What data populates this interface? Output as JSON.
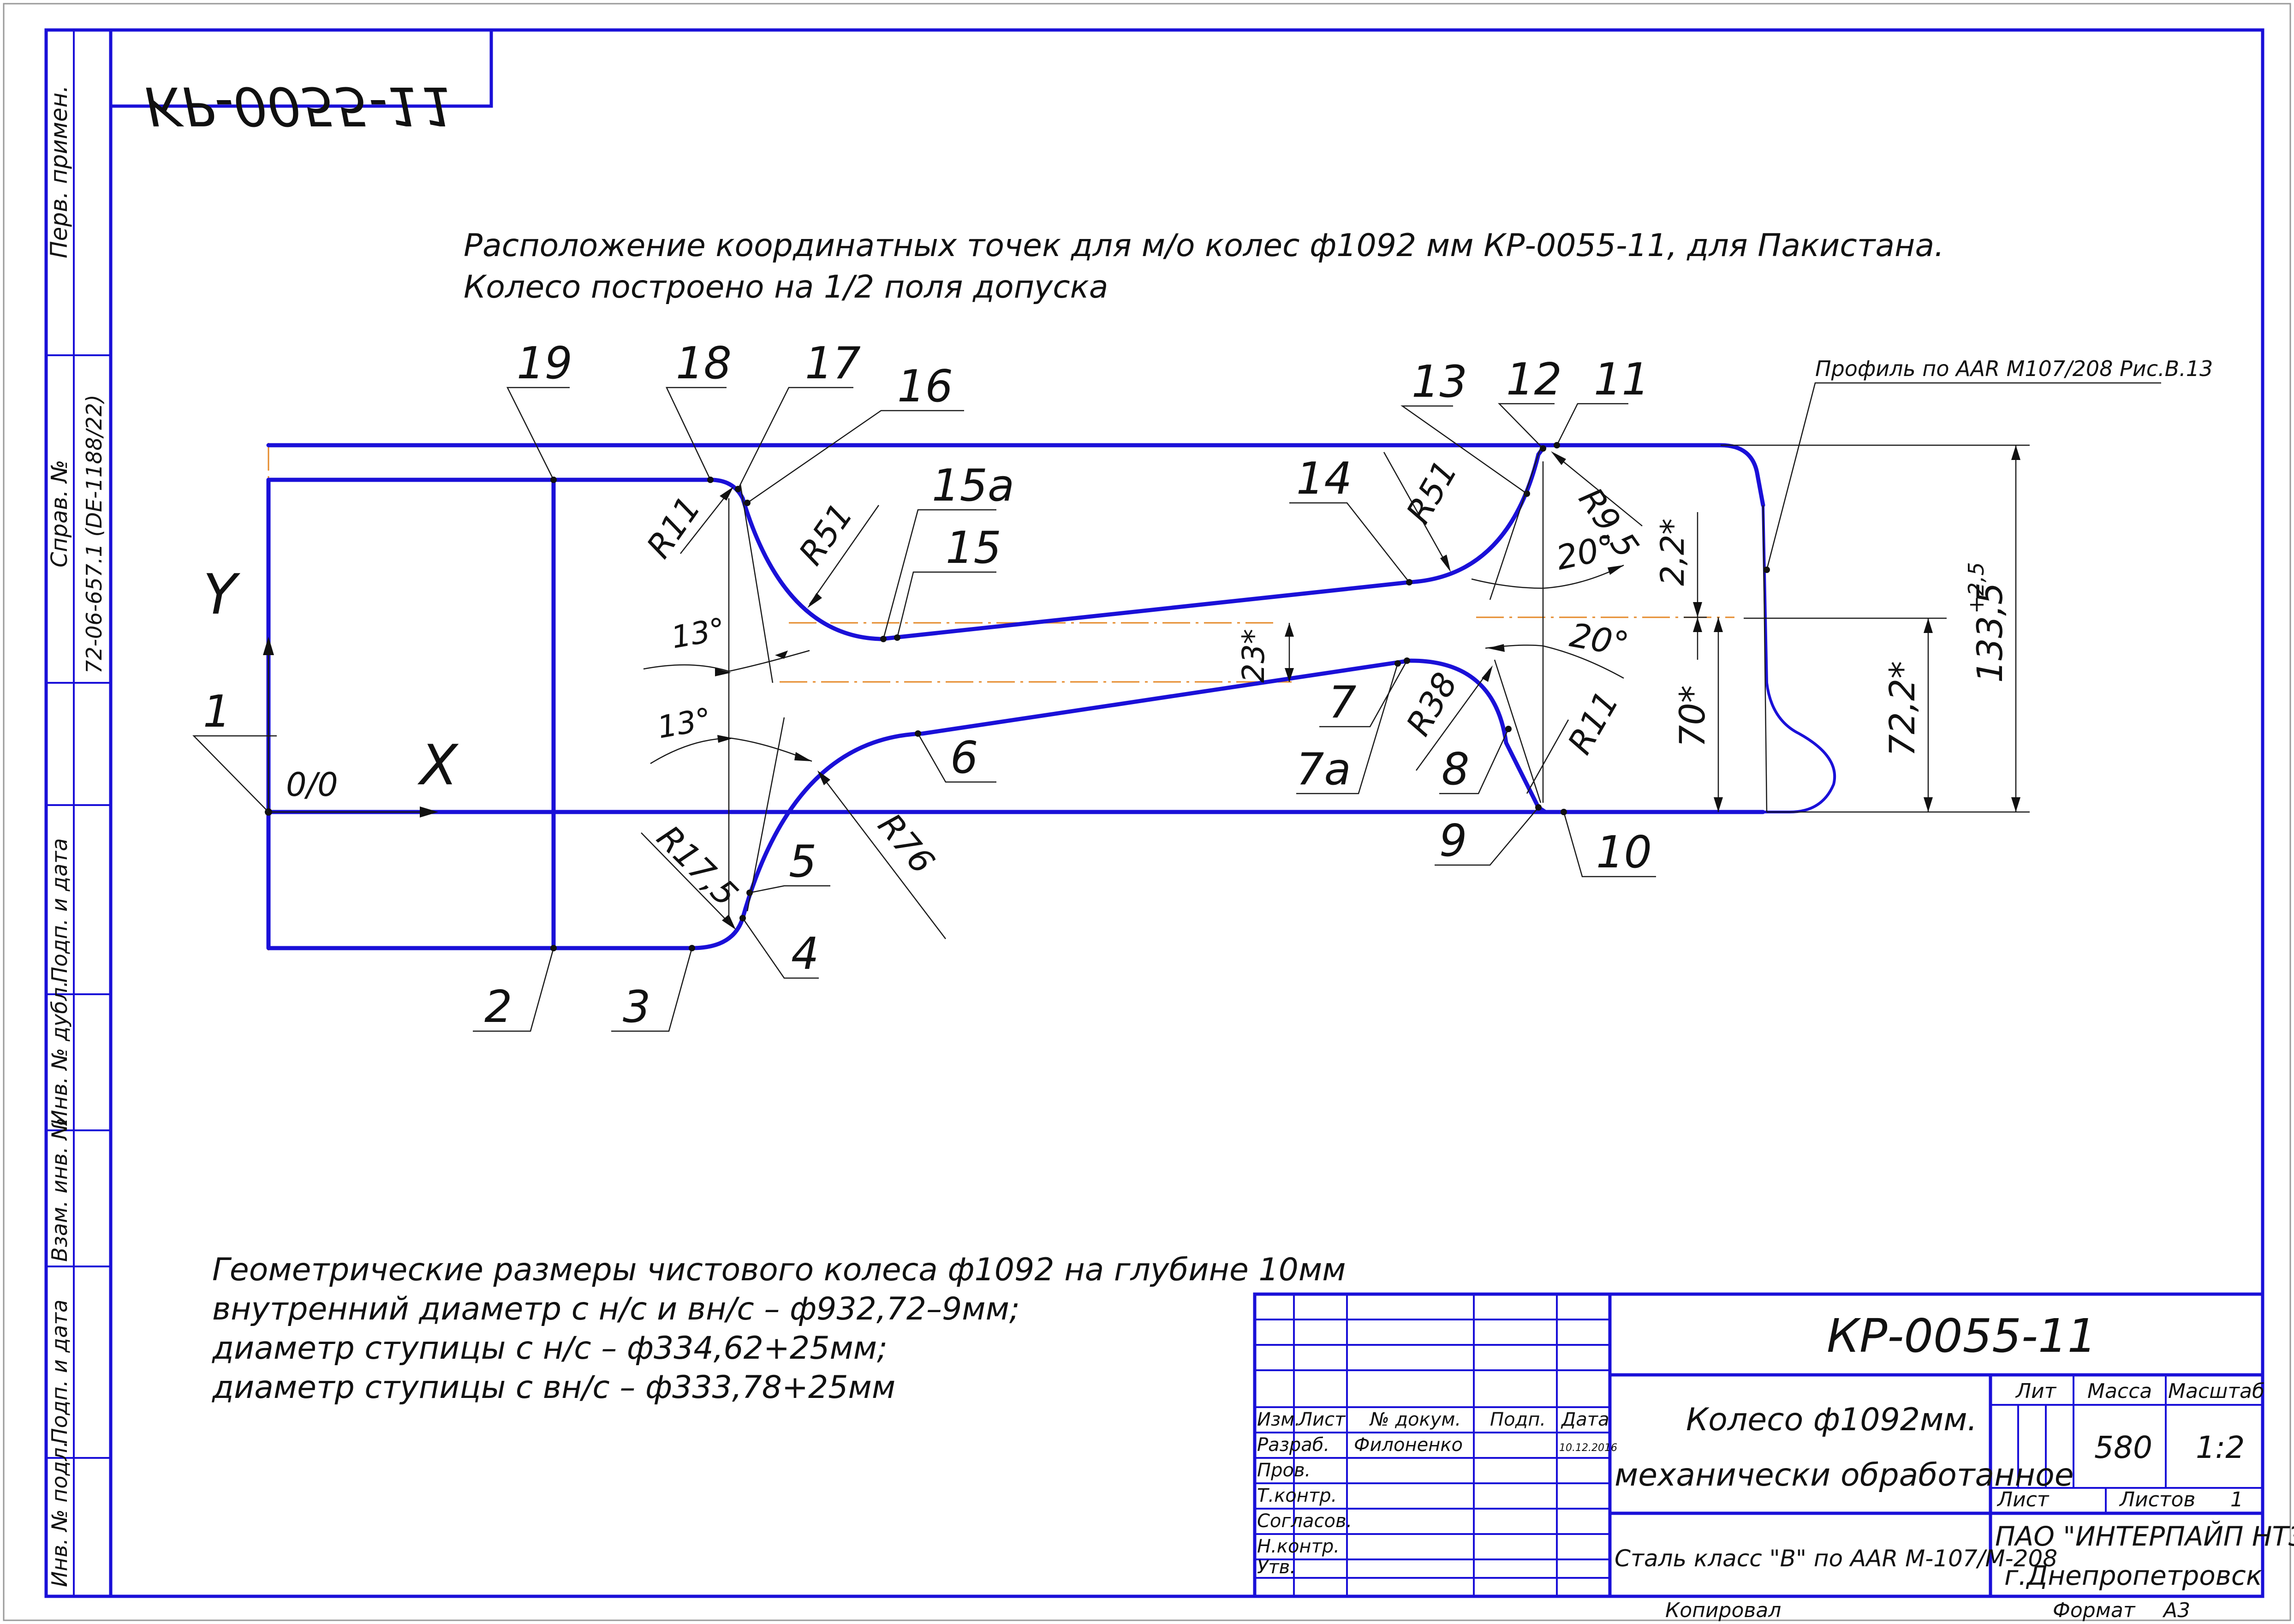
{
  "title": {
    "line1": "Расположение координатных точек для м/о колес ф1092 мм КР-0055-11, для Пакистана.",
    "line2": "Колесо построено на 1/2 поля допуска"
  },
  "stamp_code_mirrored": "КР-0055-11",
  "profile_label": "Профиль по AAR M107/208 Рис.В.13",
  "axes": {
    "y": "Y",
    "x": "X",
    "origin": "0/0"
  },
  "points": [
    "1",
    "2",
    "3",
    "4",
    "5",
    "6",
    "7",
    "7а",
    "8",
    "9",
    "10",
    "11",
    "12",
    "13",
    "14",
    "15",
    "15а",
    "16",
    "17",
    "18",
    "19"
  ],
  "radii": {
    "r11_left": "R11",
    "r51_left": "R51",
    "r17_5": "R17,5",
    "r76": "R76",
    "r38": "R38",
    "r11_right": "R11",
    "r51_right": "R51",
    "r9_5": "R9,5"
  },
  "angles": {
    "a13_upper": "13°",
    "a13_lower": "13°",
    "a20_upper": "20°",
    "a20_lower": "20°"
  },
  "dimensions": {
    "d23": "23*",
    "d2_2": "2,2*",
    "d70": "70*",
    "d72_2": "72,2*",
    "d133_5": "133,5",
    "d133_5_tol": "+2,5"
  },
  "notes": {
    "line1": "Геометрические размеры чистового колеса ф1092 на глубине 10мм",
    "line2": "внутренний диаметр с н/с и вн/с – ф932,72–9мм;",
    "line3": "диаметр ступицы с н/с – ф334,62+25мм;",
    "line4": "диаметр ступицы с вн/с – ф333,78+25мм"
  },
  "side_strip": {
    "perv_primen": "Перв. примен.",
    "sprav_no": "Справ. №",
    "sprav_value": "72-06-657.1 (DE-1188/22)",
    "podp_data1": "Подп. и дата",
    "inv_dubl": "Инв. № дубл.",
    "vzam_inv": "Взам. инв. №",
    "podp_data2": "Подп. и дата",
    "inv_podl": "Инв. № подл."
  },
  "title_block": {
    "designation": "КР-0055-11",
    "name_line1": "Колесо ф1092мм.",
    "name_line2": "механически обработанное",
    "material": "Сталь класс \"В\" по AAR M-107/M-208",
    "company_line1": "ПАО \"ИНТЕРПАЙП НТЗ\"",
    "company_line2": "г.Днепропетровск",
    "lit_label": "Лит",
    "massa_label": "Масса",
    "masshtab_label": "Масштаб",
    "massa_value": "580",
    "masshtab_value": "1:2",
    "list_label": "Лист",
    "listov_label": "Листов",
    "listov_value": "1",
    "col_izm": "Изм.",
    "col_list": "Лист",
    "col_doc": "№ докум.",
    "col_podp": "Подп.",
    "col_data": "Дата",
    "razrab": "Разраб.",
    "razrab_name": "Филоненко",
    "razrab_date": "10.12.2016",
    "prov": "Пров.",
    "tkontr": "Т.контр.",
    "soglasov": "Согласов.",
    "nkontr": "Н.контр.",
    "utv": "Утв.",
    "kopiroval": "Копировал",
    "format_label": "Формат",
    "format_value": "А3"
  }
}
